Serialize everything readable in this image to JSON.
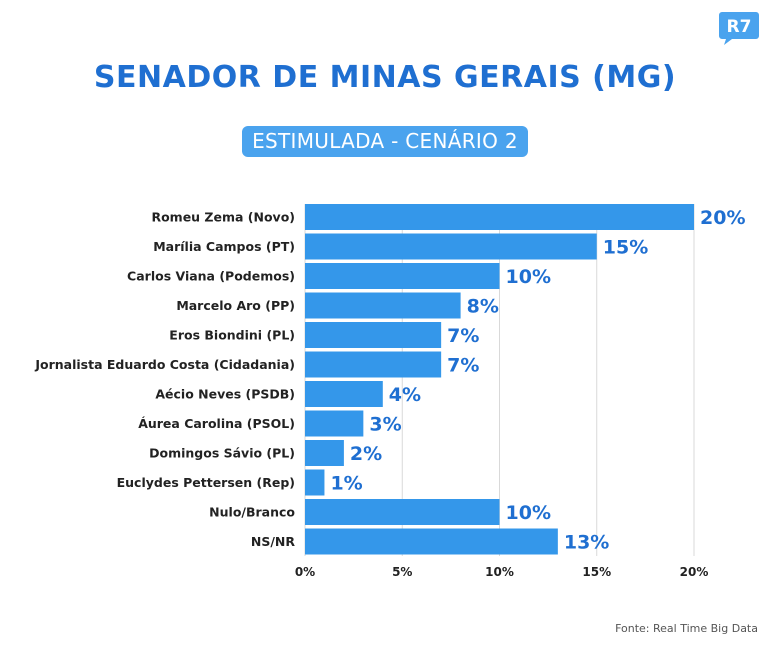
{
  "brand": {
    "logo_text": "R7",
    "logo_color": "#4aa3ee"
  },
  "header": {
    "title": "SENADOR DE MINAS GERAIS (MG)",
    "subtitle": "ESTIMULADA - CENÁRIO 2"
  },
  "colors": {
    "bar": "#3497ea",
    "title": "#1f6fd1",
    "value_label": "#1f6fd1",
    "grid": "#d9d9d9"
  },
  "chart_data": {
    "type": "bar",
    "orientation": "horizontal",
    "title": "SENADOR DE MINAS GERAIS (MG)",
    "subtitle": "ESTIMULADA - CENÁRIO 2",
    "categories": [
      "Romeu Zema (Novo)",
      "Marília Campos (PT)",
      "Carlos Viana (Podemos)",
      "Marcelo Aro (PP)",
      "Eros Biondini (PL)",
      "Jornalista Eduardo Costa (Cidadania)",
      "Aécio Neves (PSDB)",
      "Áurea Carolina (PSOL)",
      "Domingos Sávio (PL)",
      "Euclydes Pettersen (Rep)",
      "Nulo/Branco",
      "NS/NR"
    ],
    "values": [
      20,
      15,
      10,
      8,
      7,
      7,
      4,
      3,
      2,
      1,
      10,
      13
    ],
    "value_labels": [
      "20%",
      "15%",
      "10%",
      "8%",
      "7%",
      "7%",
      "4%",
      "3%",
      "2%",
      "1%",
      "10%",
      "13%"
    ],
    "xlim": [
      0,
      20
    ],
    "xticks": [
      0,
      5,
      10,
      15,
      20
    ],
    "xtick_labels": [
      "0%",
      "5%",
      "10%",
      "15%",
      "20%"
    ],
    "grid": true,
    "xlabel": "",
    "ylabel": ""
  },
  "footer": {
    "source": "Fonte: Real Time Big Data"
  }
}
